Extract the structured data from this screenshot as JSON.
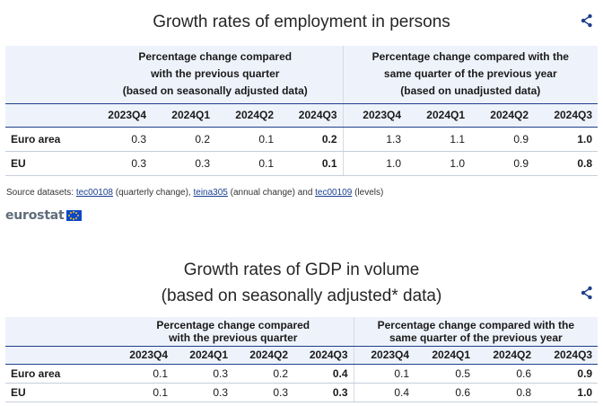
{
  "section1": {
    "title": "Growth rates of employment in persons",
    "group_left": [
      "Percentage change compared",
      "with the previous quarter",
      "(based on seasonally adjusted data)"
    ],
    "group_right": [
      "Percentage change compared with the",
      "same quarter of the previous year",
      "(based on unadjusted data)"
    ],
    "periods": [
      "2023Q4",
      "2024Q1",
      "2024Q2",
      "2024Q3",
      "2023Q4",
      "2024Q1",
      "2024Q2",
      "2024Q3"
    ],
    "rows": [
      {
        "label": "Euro area",
        "values": [
          "0.3",
          "0.2",
          "0.1",
          "0.2",
          "1.3",
          "1.1",
          "0.9",
          "1.0"
        ]
      },
      {
        "label": "EU",
        "values": [
          "0.3",
          "0.3",
          "0.1",
          "0.1",
          "1.0",
          "1.0",
          "0.9",
          "0.8"
        ]
      }
    ]
  },
  "source": {
    "prefix": "Source datasets: ",
    "link1": "tec00108",
    "mid1": " (quarterly change), ",
    "link2": "teina305",
    "mid2": " (annual change) and ",
    "link3": "tec00109",
    "suffix": " (levels)"
  },
  "logo": {
    "text": "eurostat",
    "flag_color": "#0e47cb",
    "star_color": "#ffcc00"
  },
  "section2": {
    "title_line1": "Growth rates of GDP in volume",
    "title_line2": "(based on seasonally adjusted* data)",
    "group_left": [
      "Percentage change compared",
      "with the previous quarter"
    ],
    "group_right": [
      "Percentage change compared with the",
      "same quarter of the previous year"
    ],
    "periods": [
      "2023Q4",
      "2024Q1",
      "2024Q2",
      "2024Q3",
      "2023Q4",
      "2024Q1",
      "2024Q2",
      "2024Q3"
    ],
    "rows": [
      {
        "label": "Euro area",
        "values": [
          "0.1",
          "0.3",
          "0.2",
          "0.4",
          "0.1",
          "0.5",
          "0.6",
          "0.9"
        ]
      },
      {
        "label": "EU",
        "values": [
          "0.1",
          "0.3",
          "0.3",
          "0.3",
          "0.4",
          "0.6",
          "0.8",
          "1.0"
        ]
      }
    ]
  },
  "colors": {
    "header_bg": "#eef3fb",
    "accent": "#1e3f8a",
    "link": "#1a3f8f"
  },
  "icons": {
    "share": "share-icon"
  }
}
